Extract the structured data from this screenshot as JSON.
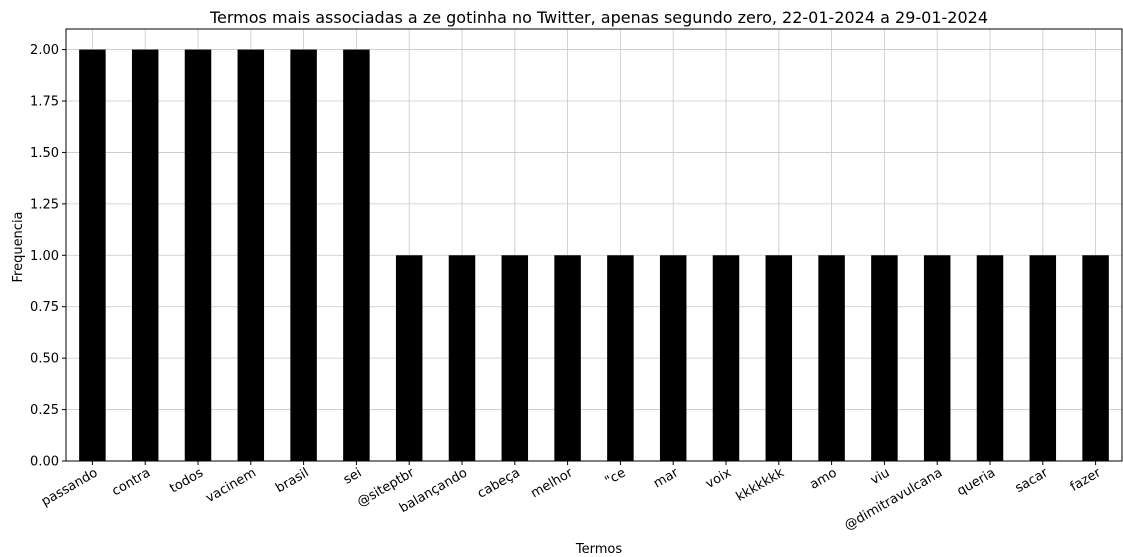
{
  "chart_data": {
    "type": "bar",
    "title": "Termos mais associadas a ze gotinha no Twitter, apenas segundo zero, 22-01-2024 a 29-01-2024",
    "xlabel": "Termos",
    "ylabel": "Frequencia",
    "categories": [
      "passando",
      "contra",
      "todos",
      "vacinem",
      "brasil",
      "sei",
      "@siteptbr",
      "balançando",
      "cabeça",
      "melhor",
      "\"ce",
      "mar",
      "voix",
      "kkkkkkk",
      "amo",
      "viu",
      "@dimitravulcana",
      "queria",
      "sacar",
      "fazer"
    ],
    "values": [
      2,
      2,
      2,
      2,
      2,
      2,
      1,
      1,
      1,
      1,
      1,
      1,
      1,
      1,
      1,
      1,
      1,
      1,
      1,
      1
    ],
    "ylim": [
      0,
      2.1
    ],
    "yticks": [
      "0.00",
      "0.25",
      "0.50",
      "0.75",
      "1.00",
      "1.25",
      "1.50",
      "1.75",
      "2.00"
    ],
    "grid": true,
    "bar_color": "#000000",
    "legend": "none"
  }
}
